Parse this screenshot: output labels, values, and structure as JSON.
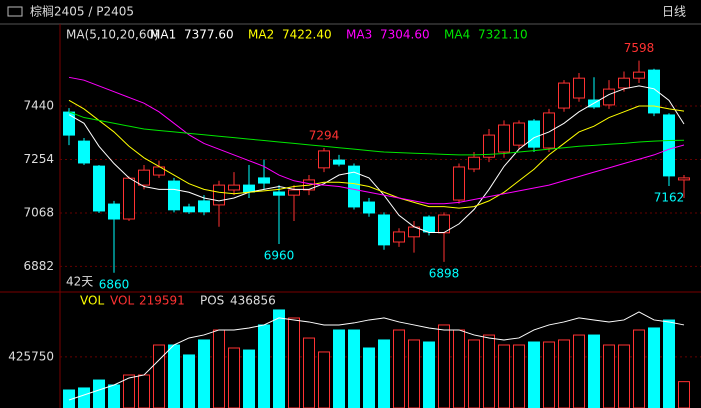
{
  "chart_data": {
    "type": "candlestick",
    "title": "棕榈2405 / P2405",
    "period": "日线",
    "days_label": "42天",
    "indicator_label": "MA(5,10,20,60)",
    "ylim": [
      6800,
      7722
    ],
    "yticks": [
      6882,
      7068,
      7254,
      7440
    ],
    "up_color": "#ff3232",
    "down_color": "#00ffff",
    "open": [
      7419,
      7318,
      7231,
      7099,
      7047,
      7165,
      7200,
      7179,
      7089,
      7110,
      7096,
      7148,
      7165,
      7190,
      7141,
      7130,
      7148,
      7225,
      7252,
      7231,
      7106,
      7061,
      6967,
      6985,
      7054,
      6999,
      7113,
      7221,
      7262,
      7280,
      7304,
      7388,
      7294,
      7433,
      7468,
      7461,
      7444,
      7503,
      7537,
      7565,
      7409,
      7183
    ],
    "high": [
      7433,
      7329,
      7235,
      7110,
      7195,
      7235,
      7250,
      7190,
      7100,
      7130,
      7180,
      7210,
      7235,
      7254,
      7165,
      7165,
      7200,
      7294,
      7270,
      7240,
      7120,
      7070,
      7015,
      7040,
      7060,
      7070,
      7240,
      7280,
      7360,
      7390,
      7390,
      7395,
      7430,
      7530,
      7555,
      7540,
      7530,
      7560,
      7598,
      7570,
      7415,
      7200
    ],
    "low": [
      7304,
      7235,
      7068,
      6860,
      7040,
      7150,
      7190,
      7070,
      7065,
      7060,
      7020,
      7130,
      7120,
      7150,
      6960,
      7040,
      7130,
      7210,
      7230,
      7080,
      7055,
      6940,
      6950,
      6930,
      6990,
      6898,
      7100,
      7210,
      7245,
      7260,
      7290,
      7280,
      7280,
      7420,
      7455,
      7430,
      7430,
      7490,
      7520,
      7405,
      7162,
      7120
    ],
    "close": [
      7339,
      7242,
      7075,
      7047,
      7189,
      7217,
      7228,
      7079,
      7072,
      7072,
      7165,
      7165,
      7141,
      7172,
      7130,
      7148,
      7183,
      7284,
      7238,
      7089,
      7068,
      6957,
      7002,
      7019,
      7002,
      7061,
      7228,
      7262,
      7339,
      7374,
      7381,
      7297,
      7416,
      7520,
      7537,
      7437,
      7499,
      7537,
      7558,
      7416,
      7197,
      7190
    ],
    "price_labels": [
      {
        "candle": 3,
        "value": 6860,
        "side": "low"
      },
      {
        "candle": 14,
        "value": 6960,
        "side": "low"
      },
      {
        "candle": 17,
        "value": 7294,
        "side": "high"
      },
      {
        "candle": 25,
        "value": 6898,
        "side": "low"
      },
      {
        "candle": 38,
        "value": 7598,
        "side": "high"
      },
      {
        "candle": 40,
        "value": 7162,
        "side": "low"
      }
    ],
    "series": [
      {
        "name": "MA1",
        "color": "#ffffff",
        "legend_label": "7377.60",
        "values": [
          7410,
          7380,
          7300,
          7240,
          7190,
          7160,
          7150,
          7150,
          7140,
          7120,
          7110,
          7120,
          7140,
          7150,
          7160,
          7150,
          7150,
          7170,
          7200,
          7210,
          7190,
          7130,
          7060,
          7020,
          7000,
          7000,
          7030,
          7080,
          7150,
          7230,
          7290,
          7330,
          7350,
          7380,
          7420,
          7450,
          7480,
          7500,
          7510,
          7500,
          7460,
          7377.6
        ]
      },
      {
        "name": "MA2",
        "color": "#ffff00",
        "legend_label": "7422.40",
        "values": [
          7460,
          7430,
          7390,
          7350,
          7300,
          7260,
          7230,
          7200,
          7170,
          7150,
          7140,
          7135,
          7140,
          7145,
          7150,
          7160,
          7165,
          7175,
          7175,
          7170,
          7160,
          7140,
          7120,
          7105,
          7090,
          7090,
          7085,
          7090,
          7110,
          7140,
          7180,
          7220,
          7270,
          7310,
          7350,
          7370,
          7400,
          7420,
          7440,
          7440,
          7430,
          7422.4
        ]
      },
      {
        "name": "MA3",
        "color": "#ff00ff",
        "legend_label": "7304.60",
        "values": [
          7540,
          7530,
          7510,
          7490,
          7470,
          7450,
          7420,
          7380,
          7340,
          7310,
          7290,
          7270,
          7250,
          7230,
          7200,
          7180,
          7170,
          7165,
          7160,
          7150,
          7140,
          7130,
          7120,
          7110,
          7100,
          7100,
          7105,
          7115,
          7125,
          7135,
          7145,
          7155,
          7165,
          7180,
          7195,
          7210,
          7225,
          7240,
          7255,
          7270,
          7290,
          7304.6
        ]
      },
      {
        "name": "MA4",
        "color": "#00e600",
        "legend_label": "7321.10",
        "values": [
          7420,
          7400,
          7390,
          7380,
          7370,
          7360,
          7355,
          7350,
          7345,
          7340,
          7335,
          7330,
          7325,
          7320,
          7315,
          7310,
          7305,
          7300,
          7295,
          7290,
          7285,
          7280,
          7278,
          7276,
          7274,
          7272,
          7270,
          7270,
          7272,
          7275,
          7280,
          7285,
          7290,
          7295,
          7300,
          7303,
          7307,
          7310,
          7315,
          7318,
          7320,
          7321.1
        ]
      }
    ],
    "volume": {
      "name": "VOL",
      "legend_name": "VOL",
      "ylim": [
        0,
        900000
      ],
      "yticks": [
        425750
      ],
      "values": [
        150000,
        167000,
        233000,
        192000,
        275000,
        275000,
        525000,
        525000,
        442000,
        567000,
        650000,
        500000,
        483000,
        692000,
        817000,
        750000,
        583000,
        467000,
        650000,
        650000,
        500000,
        567000,
        650000,
        567000,
        550000,
        692000,
        650000,
        567000,
        608000,
        525000,
        525000,
        550000,
        550000,
        567000,
        608000,
        608000,
        525000,
        525000,
        650000,
        667000,
        733000,
        219591
      ]
    },
    "pos": {
      "name": "POS",
      "color": "#ffffff",
      "ylim": [
        0,
        568000
      ],
      "values": [
        42100,
        68400,
        94700,
        121000,
        157900,
        173700,
        252600,
        331600,
        368400,
        384200,
        410500,
        410500,
        421000,
        436800,
        473700,
        463100,
        452600,
        436800,
        436800,
        447400,
        463100,
        473700,
        452600,
        436800,
        421000,
        410500,
        410500,
        384200,
        368400,
        357900,
        368400,
        410500,
        436800,
        452600,
        473700,
        463100,
        452600,
        463100,
        505200,
        463100,
        452600,
        436856
      ]
    }
  }
}
